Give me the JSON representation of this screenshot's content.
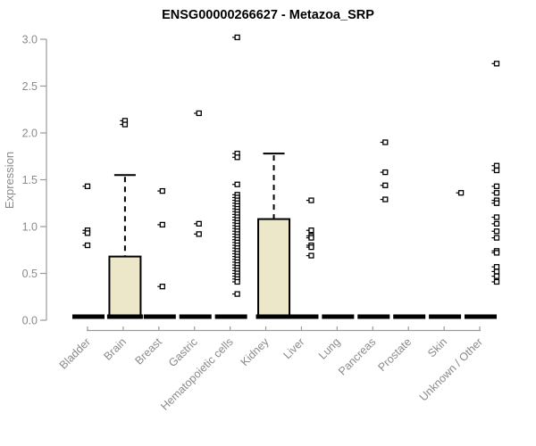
{
  "chart_data": {
    "type": "box",
    "title": "ENSG00000266627 - Metazoa_SRP",
    "ylabel": "Expression",
    "ylim": [
      0.0,
      3.05
    ],
    "yticks": [
      0.0,
      0.5,
      1.0,
      1.5,
      2.0,
      2.5,
      3.0
    ],
    "ytick_labels": [
      "0.0",
      "0.5",
      "1.0",
      "1.5",
      "2.0",
      "2.5",
      "3.0"
    ],
    "grid": false,
    "legend": "none",
    "box_fill_color": "#ede7ca",
    "axis_color": "#9a9a9a",
    "label_color": "#8a8a8a",
    "categories": [
      "Bladder",
      "Brain",
      "Breast",
      "Gastric",
      "Hematopoietic cells",
      "Kidney",
      "Liver",
      "Lung",
      "Pancreas",
      "Prostate",
      "Skin",
      "Unknown / Other"
    ],
    "series": [
      {
        "label": "Bladder",
        "median": 0,
        "q1": 0,
        "q3": 0,
        "whisker_high": null,
        "points": [
          1.43,
          0.96,
          0.93,
          0.8
        ]
      },
      {
        "label": "Brain",
        "median": 0,
        "q1": 0,
        "q3": 0.68,
        "whisker_high": 1.55,
        "points": [
          2.13,
          2.09
        ]
      },
      {
        "label": "Breast",
        "median": 0,
        "q1": 0,
        "q3": 0,
        "whisker_high": null,
        "points": [
          1.38,
          1.02,
          0.36
        ]
      },
      {
        "label": "Gastric",
        "median": 0,
        "q1": 0,
        "q3": 0,
        "whisker_high": null,
        "points": [
          2.21,
          1.03,
          0.92
        ]
      },
      {
        "label": "Hematopoietic cells",
        "median": 0,
        "q1": 0,
        "q3": 0,
        "whisker_high": null,
        "points": [
          3.02,
          1.78,
          1.74,
          1.45,
          1.34,
          1.31,
          1.28,
          1.25,
          1.22,
          1.19,
          1.16,
          1.13,
          1.1,
          1.07,
          1.04,
          1.01,
          0.98,
          0.95,
          0.92,
          0.89,
          0.86,
          0.83,
          0.8,
          0.77,
          0.74,
          0.71,
          0.68,
          0.65,
          0.62,
          0.59,
          0.56,
          0.53,
          0.5,
          0.47,
          0.44,
          0.41,
          0.28
        ]
      },
      {
        "label": "Kidney",
        "median": 0,
        "q1": 0,
        "q3": 1.08,
        "whisker_high": 1.78,
        "points": []
      },
      {
        "label": "Liver",
        "median": 0,
        "q1": 0,
        "q3": 0,
        "whisker_high": null,
        "points": [
          1.28,
          0.96,
          0.9,
          0.88,
          0.8,
          0.78,
          0.69
        ]
      },
      {
        "label": "Lung",
        "median": 0,
        "q1": 0,
        "q3": 0,
        "whisker_high": null,
        "points": []
      },
      {
        "label": "Pancreas",
        "median": 0,
        "q1": 0,
        "q3": 0,
        "whisker_high": null,
        "points": [
          1.9,
          1.58,
          1.44,
          1.29
        ]
      },
      {
        "label": "Prostate",
        "median": 0,
        "q1": 0,
        "q3": 0,
        "whisker_high": null,
        "points": []
      },
      {
        "label": "Skin",
        "median": 0,
        "q1": 0,
        "q3": 0,
        "whisker_high": null,
        "points": [
          1.36
        ]
      },
      {
        "label": "Unknown / Other",
        "median": 0,
        "q1": 0,
        "q3": 0,
        "whisker_high": null,
        "points": [
          2.74,
          1.65,
          1.6,
          1.43,
          1.36,
          1.28,
          1.25,
          1.1,
          1.03,
          0.95,
          0.88,
          0.74,
          0.72,
          0.57,
          0.52,
          0.47,
          0.41
        ]
      }
    ]
  }
}
